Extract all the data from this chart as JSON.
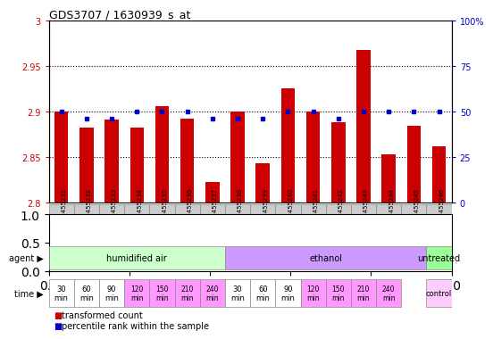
{
  "title": "GDS3707 / 1630939_s_at",
  "samples": [
    "GSM455231",
    "GSM455232",
    "GSM455233",
    "GSM455234",
    "GSM455235",
    "GSM455236",
    "GSM455237",
    "GSM455238",
    "GSM455239",
    "GSM455240",
    "GSM455241",
    "GSM455242",
    "GSM455243",
    "GSM455244",
    "GSM455245",
    "GSM455246"
  ],
  "bar_values": [
    2.9,
    2.882,
    2.891,
    2.882,
    2.906,
    2.892,
    2.822,
    2.9,
    2.843,
    2.926,
    2.9,
    2.888,
    2.968,
    2.853,
    2.884,
    2.862
  ],
  "dot_values": [
    50,
    46,
    46,
    50,
    50,
    50,
    46,
    46,
    46,
    50,
    50,
    46,
    50,
    50,
    50,
    50
  ],
  "bar_color": "#cc0000",
  "dot_color": "#0000cc",
  "ylim_left": [
    2.8,
    3.0
  ],
  "ylim_right": [
    0,
    100
  ],
  "yticks_left": [
    2.8,
    2.85,
    2.9,
    2.95,
    3.0
  ],
  "yticks_right": [
    0,
    25,
    50,
    75,
    100
  ],
  "ytick_labels_left": [
    "2.8",
    "2.85",
    "2.9",
    "2.95",
    "3"
  ],
  "ytick_labels_right": [
    "0",
    "25",
    "50",
    "75",
    "100%"
  ],
  "agent_groups": [
    {
      "label": "humidified air",
      "start": 0,
      "end": 7,
      "color": "#ccffcc"
    },
    {
      "label": "ethanol",
      "start": 7,
      "end": 15,
      "color": "#cc99ff"
    },
    {
      "label": "untreated",
      "start": 15,
      "end": 16,
      "color": "#99ff99"
    }
  ],
  "time_data": [
    {
      "label": "30\nmin",
      "color": "#ffffff",
      "idx": 0
    },
    {
      "label": "60\nmin",
      "color": "#ffffff",
      "idx": 1
    },
    {
      "label": "90\nmin",
      "color": "#ffffff",
      "idx": 2
    },
    {
      "label": "120\nmin",
      "color": "#ff99ff",
      "idx": 3
    },
    {
      "label": "150\nmin",
      "color": "#ff99ff",
      "idx": 4
    },
    {
      "label": "210\nmin",
      "color": "#ff99ff",
      "idx": 5
    },
    {
      "label": "240\nmin",
      "color": "#ff99ff",
      "idx": 6
    },
    {
      "label": "30\nmin",
      "color": "#ffffff",
      "idx": 7
    },
    {
      "label": "60\nmin",
      "color": "#ffffff",
      "idx": 8
    },
    {
      "label": "90\nmin",
      "color": "#ffffff",
      "idx": 9
    },
    {
      "label": "120\nmin",
      "color": "#ff99ff",
      "idx": 10
    },
    {
      "label": "150\nmin",
      "color": "#ff99ff",
      "idx": 11
    },
    {
      "label": "210\nmin",
      "color": "#ff99ff",
      "idx": 12
    },
    {
      "label": "240\nmin",
      "color": "#ff99ff",
      "idx": 13
    },
    {
      "label": "control",
      "color": "#ffccff",
      "idx": 15
    }
  ],
  "legend_items": [
    {
      "label": "transformed count",
      "color": "#cc0000"
    },
    {
      "label": "percentile rank within the sample",
      "color": "#0000cc"
    }
  ],
  "tick_color_left": "#cc0000",
  "tick_color_right": "#0000cc",
  "background_color": "#ffffff",
  "agent_label": "agent",
  "time_label": "time",
  "cell_bg": "#cccccc",
  "cell_border": "#888888"
}
